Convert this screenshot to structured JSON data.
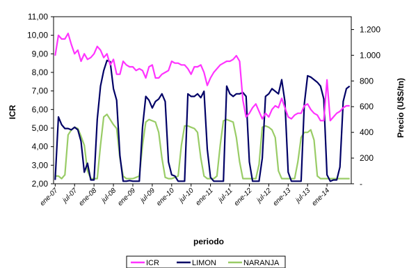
{
  "chart_data": {
    "type": "line",
    "xlabel": "periodo",
    "ylabel_left": "ICR",
    "ylabel_right": "Precio (U$S/tn)",
    "ylim_left": [
      2.0,
      11.0
    ],
    "ylim_right": [
      0,
      1300
    ],
    "yticks_left": [
      "2,00",
      "3,00",
      "4,00",
      "5,00",
      "6,00",
      "7,00",
      "8,00",
      "9,00",
      "10,00",
      "11,00"
    ],
    "yticks_right": [
      "-",
      "200",
      "400",
      "600",
      "800",
      "1.000",
      "1.200"
    ],
    "xticks": [
      "ene-07",
      "jul-07",
      "ene-08",
      "jul-08",
      "ene-09",
      "jul-09",
      "ene-10",
      "jul-10",
      "ene-11",
      "jul-11",
      "ene-12",
      "jul-12",
      "ene-13",
      "jul-13",
      "ene-14"
    ],
    "x_start": "2007-01",
    "grid": false,
    "legend_position": "bottom",
    "series": [
      {
        "name": "ICR",
        "axis": "left",
        "color": "#ff33ff",
        "values": [
          8.9,
          10.0,
          9.8,
          9.8,
          10.1,
          9.5,
          9.0,
          9.2,
          8.6,
          9.0,
          8.7,
          8.8,
          9.0,
          9.4,
          9.2,
          8.8,
          9.0,
          8.4,
          8.7,
          7.9,
          7.9,
          8.6,
          8.4,
          8.3,
          8.3,
          8.1,
          8.2,
          8.1,
          7.7,
          8.3,
          8.4,
          7.7,
          7.7,
          7.9,
          8.0,
          8.1,
          8.6,
          8.5,
          8.5,
          8.4,
          8.4,
          8.2,
          7.9,
          8.3,
          8.3,
          8.4,
          8.0,
          7.3,
          7.7,
          8.0,
          8.2,
          8.4,
          8.5,
          8.6,
          8.6,
          8.7,
          8.9,
          8.6,
          6.5,
          5.6,
          5.8,
          6.1,
          6.3,
          5.9,
          5.5,
          5.8,
          5.6,
          6.0,
          6.2,
          6.1,
          6.6,
          6.1,
          5.6,
          5.5,
          5.7,
          5.8,
          5.8,
          6.2,
          6.3,
          6.0,
          5.8,
          5.7,
          5.4,
          5.4,
          7.6,
          5.4,
          5.6,
          5.8,
          5.9,
          6.1,
          6.2,
          6.2
        ]
      },
      {
        "name": "LIMON",
        "axis": "right",
        "color": "#000066",
        "values": [
          30,
          520,
          460,
          430,
          430,
          420,
          440,
          420,
          330,
          90,
          160,
          30,
          30,
          500,
          760,
          880,
          960,
          950,
          740,
          650,
          220,
          20,
          20,
          25,
          20,
          20,
          20,
          440,
          680,
          650,
          590,
          640,
          660,
          700,
          640,
          170,
          70,
          60,
          20,
          20,
          20,
          700,
          680,
          680,
          700,
          670,
          720,
          270,
          50,
          20,
          20,
          20,
          20,
          760,
          700,
          680,
          700,
          700,
          710,
          680,
          170,
          20,
          20,
          20,
          200,
          680,
          700,
          740,
          720,
          700,
          810,
          640,
          90,
          20,
          20,
          20,
          20,
          620,
          840,
          830,
          810,
          790,
          760,
          660,
          70,
          20,
          30,
          30,
          130,
          640,
          740,
          760
        ]
      },
      {
        "name": "NARANJA",
        "axis": "right",
        "color": "#99cc66",
        "values": [
          60,
          60,
          40,
          70,
          380,
          420,
          440,
          430,
          370,
          300,
          100,
          40,
          40,
          40,
          300,
          520,
          540,
          500,
          460,
          430,
          200,
          60,
          40,
          40,
          40,
          50,
          60,
          300,
          480,
          500,
          490,
          480,
          400,
          200,
          50,
          40,
          40,
          50,
          60,
          300,
          450,
          450,
          440,
          430,
          400,
          200,
          60,
          40,
          40,
          40,
          60,
          300,
          490,
          500,
          490,
          480,
          360,
          170,
          40,
          40,
          40,
          40,
          40,
          150,
          440,
          450,
          440,
          420,
          360,
          100,
          40,
          40,
          40,
          40,
          40,
          170,
          360,
          400,
          400,
          420,
          340,
          60,
          40,
          40,
          40,
          40,
          40,
          40,
          40,
          40,
          40,
          40
        ]
      }
    ]
  }
}
